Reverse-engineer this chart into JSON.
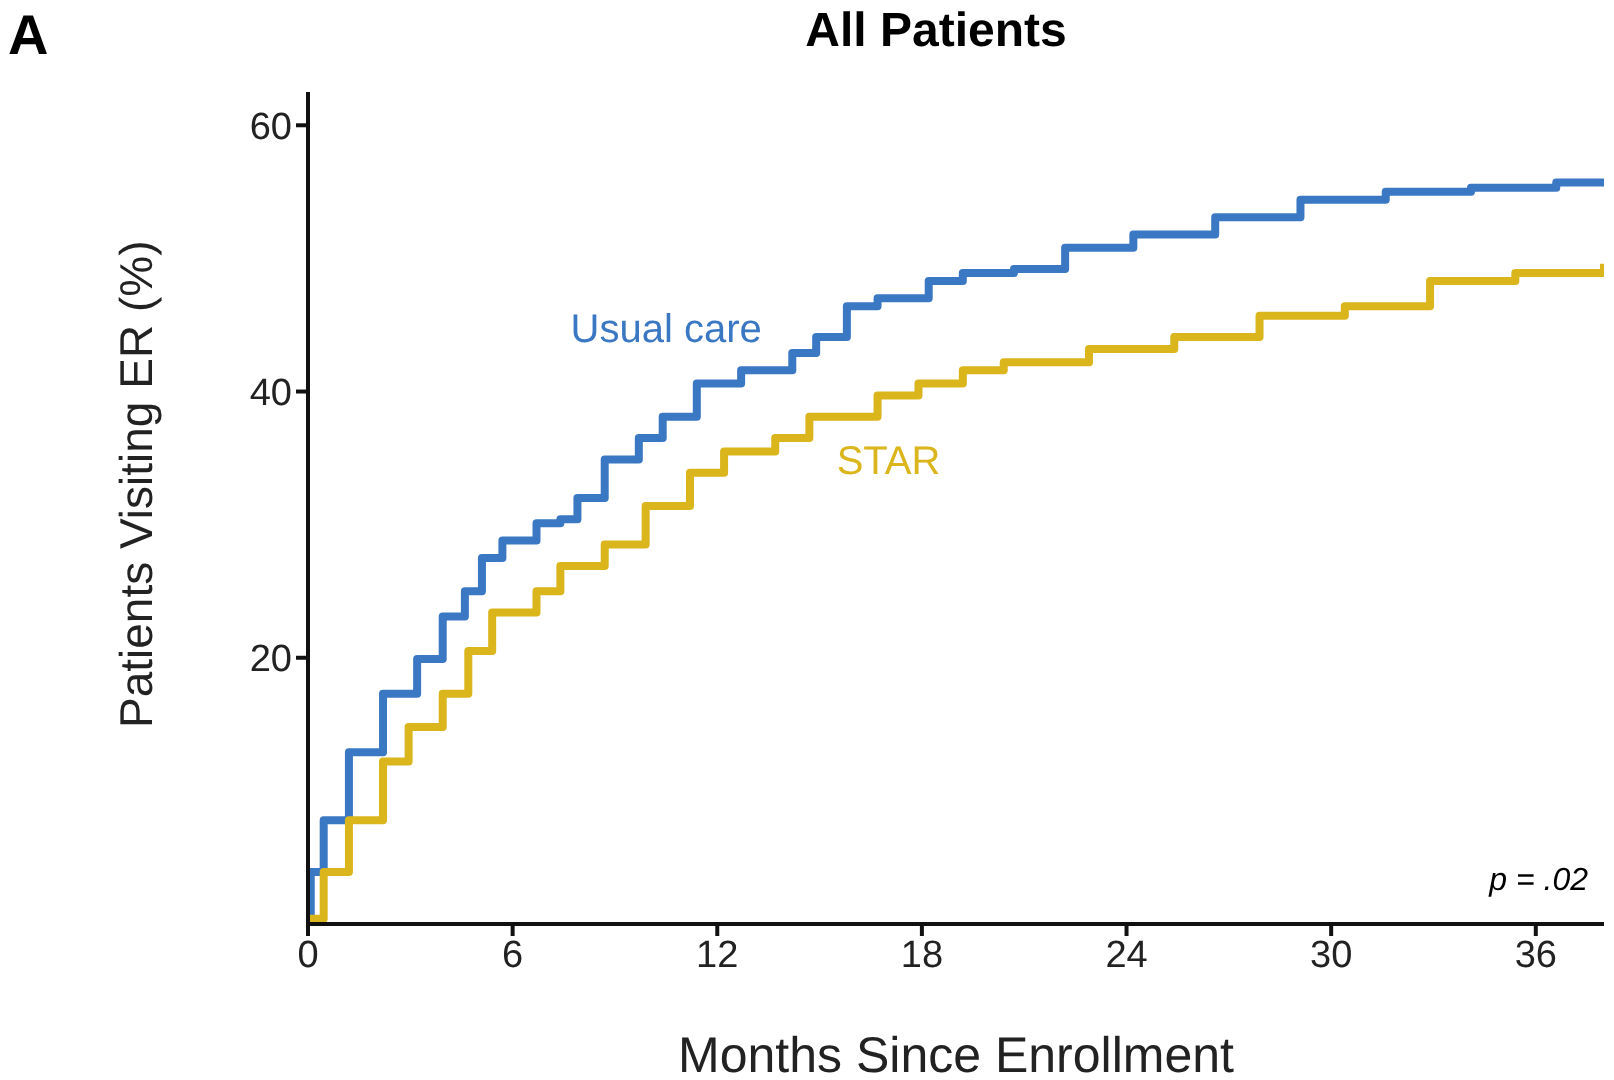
{
  "chart_data": {
    "type": "step",
    "title": "All Patients",
    "xlabel": "Months Since Enrollment",
    "ylabel": "Patients Visiting ER (%)",
    "annotations": [
      "A",
      "p = .02"
    ],
    "series": [
      {
        "name": "Usual care",
        "color": "#3b78c4",
        "x": [
          0,
          0.08,
          0.46,
          1.2,
          2.2,
          3.2,
          3.95,
          4.6,
          5.1,
          5.7,
          6.7,
          7.4,
          7.9,
          8.7,
          9.7,
          10.4,
          11.4,
          12.7,
          14.2,
          14.9,
          15.8,
          16.7,
          18.2,
          19.2,
          20.7,
          22.2,
          24.2,
          26.6,
          29.1,
          31.6,
          34.1,
          36.6,
          38
        ],
        "values": [
          0,
          3.9,
          7.8,
          12.9,
          17.3,
          19.9,
          23.1,
          25,
          27.5,
          28.8,
          30.1,
          30.4,
          32,
          34.9,
          36.5,
          38.1,
          40.6,
          41.6,
          42.9,
          44.1,
          46.4,
          47,
          48.3,
          48.9,
          49.2,
          50.8,
          51.8,
          53.1,
          54.4,
          55,
          55.3,
          55.7,
          55.9
        ]
      },
      {
        "name": "STAR",
        "color": "#dbb51c",
        "x": [
          0,
          0.08,
          0.46,
          1.2,
          2.2,
          2.95,
          3.95,
          4.7,
          5.4,
          6.7,
          7.4,
          8.7,
          9.9,
          11.2,
          12.2,
          13.7,
          14.7,
          16.7,
          17.9,
          19.2,
          20.4,
          22.9,
          25.4,
          27.9,
          30.4,
          32.9,
          35.4,
          38
        ],
        "values": [
          0,
          0.4,
          3.9,
          7.8,
          12.2,
          14.8,
          17.3,
          20.5,
          23.4,
          25,
          26.9,
          28.5,
          31.4,
          33.9,
          35.5,
          36.5,
          38.1,
          39.7,
          40.6,
          41.6,
          42.2,
          43.2,
          44.1,
          45.7,
          46.4,
          48.3,
          48.9,
          49.6
        ]
      }
    ],
    "xlim": [
      0,
      38
    ],
    "xticks": [
      0,
      6,
      12,
      18,
      24,
      30,
      36
    ],
    "ylim": [
      0,
      62.5
    ],
    "yticks": [
      20,
      40,
      60
    ]
  }
}
